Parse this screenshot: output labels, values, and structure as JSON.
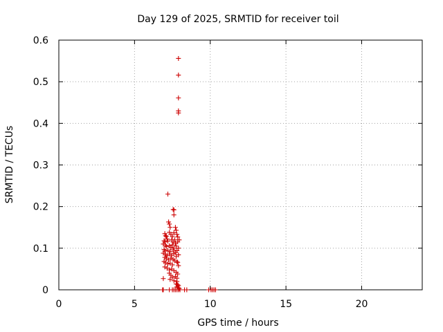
{
  "chart_data": {
    "type": "scatter",
    "title": "Day 129 of 2025, SRMTID for receiver toil",
    "xlabel": "GPS time / hours",
    "ylabel": "SRMTID / TECUs",
    "xlim": [
      0,
      24
    ],
    "ylim": [
      0,
      0.6
    ],
    "xticks": [
      0,
      5,
      10,
      15,
      20
    ],
    "yticks": [
      0,
      0.1,
      0.2,
      0.3,
      0.4,
      0.5,
      0.6
    ],
    "ytick_labels": [
      "0",
      "0.1",
      "0.2",
      "0.3",
      "0.4",
      "0.5",
      "0.6"
    ],
    "grid": true,
    "marker": "+",
    "color": "#cc0000",
    "series": [
      {
        "name": "SRMTID",
        "points": [
          [
            7.9,
            0.556
          ],
          [
            7.9,
            0.516
          ],
          [
            7.9,
            0.461
          ],
          [
            7.9,
            0.43
          ],
          [
            7.9,
            0.425
          ],
          [
            7.2,
            0.23
          ],
          [
            7.55,
            0.193
          ],
          [
            7.6,
            0.192
          ],
          [
            7.6,
            0.18
          ],
          [
            7.25,
            0.163
          ],
          [
            7.3,
            0.158
          ],
          [
            7.35,
            0.15
          ],
          [
            7.7,
            0.15
          ],
          [
            7.75,
            0.143
          ],
          [
            7.0,
            0.135
          ],
          [
            7.05,
            0.13
          ],
          [
            7.1,
            0.128
          ],
          [
            7.3,
            0.138
          ],
          [
            7.4,
            0.133
          ],
          [
            7.5,
            0.128
          ],
          [
            7.6,
            0.137
          ],
          [
            7.8,
            0.133
          ],
          [
            7.85,
            0.127
          ],
          [
            7.95,
            0.12
          ],
          [
            6.95,
            0.118
          ],
          [
            7.0,
            0.115
          ],
          [
            7.15,
            0.122
          ],
          [
            7.2,
            0.117
          ],
          [
            7.45,
            0.12
          ],
          [
            7.55,
            0.115
          ],
          [
            7.65,
            0.12
          ],
          [
            7.7,
            0.112
          ],
          [
            7.85,
            0.115
          ],
          [
            6.9,
            0.11
          ],
          [
            7.05,
            0.107
          ],
          [
            7.1,
            0.104
          ],
          [
            7.3,
            0.106
          ],
          [
            7.4,
            0.102
          ],
          [
            7.5,
            0.108
          ],
          [
            7.6,
            0.1
          ],
          [
            7.75,
            0.105
          ],
          [
            7.9,
            0.1
          ],
          [
            6.95,
            0.097
          ],
          [
            7.0,
            0.093
          ],
          [
            7.2,
            0.095
          ],
          [
            7.35,
            0.092
          ],
          [
            7.55,
            0.096
          ],
          [
            7.7,
            0.09
          ],
          [
            7.8,
            0.094
          ],
          [
            6.9,
            0.088
          ],
          [
            7.05,
            0.085
          ],
          [
            7.15,
            0.082
          ],
          [
            7.3,
            0.086
          ],
          [
            7.45,
            0.083
          ],
          [
            7.6,
            0.087
          ],
          [
            7.75,
            0.08
          ],
          [
            7.9,
            0.084
          ],
          [
            7.0,
            0.078
          ],
          [
            7.1,
            0.075
          ],
          [
            7.25,
            0.072
          ],
          [
            7.4,
            0.076
          ],
          [
            7.55,
            0.073
          ],
          [
            7.65,
            0.07
          ],
          [
            7.8,
            0.067
          ],
          [
            6.95,
            0.068
          ],
          [
            7.05,
            0.065
          ],
          [
            7.2,
            0.062
          ],
          [
            7.35,
            0.064
          ],
          [
            7.5,
            0.06
          ],
          [
            7.85,
            0.066
          ],
          [
            7.9,
            0.058
          ],
          [
            7.0,
            0.055
          ],
          [
            7.15,
            0.052
          ],
          [
            7.3,
            0.048
          ],
          [
            7.45,
            0.05
          ],
          [
            7.6,
            0.046
          ],
          [
            7.75,
            0.042
          ],
          [
            7.85,
            0.038
          ],
          [
            7.3,
            0.04
          ],
          [
            7.4,
            0.035
          ],
          [
            7.5,
            0.03
          ],
          [
            7.7,
            0.032
          ],
          [
            7.8,
            0.028
          ],
          [
            6.9,
            0.027
          ],
          [
            7.35,
            0.025
          ],
          [
            7.6,
            0.022
          ],
          [
            7.8,
            0.02
          ],
          [
            7.75,
            0.014
          ],
          [
            7.85,
            0.012
          ],
          [
            7.9,
            0.01
          ],
          [
            7.8,
            0.007
          ],
          [
            7.9,
            0.005
          ],
          [
            7.95,
            0.003
          ],
          [
            6.85,
            0.0
          ],
          [
            6.9,
            0.0
          ],
          [
            7.3,
            0.0
          ],
          [
            7.5,
            0.0
          ],
          [
            7.6,
            0.0
          ],
          [
            7.7,
            0.0
          ],
          [
            7.8,
            0.0
          ],
          [
            7.9,
            0.0
          ],
          [
            8.0,
            0.0
          ],
          [
            8.3,
            0.0
          ],
          [
            8.45,
            0.0
          ],
          [
            9.9,
            0.0
          ],
          [
            10.05,
            0.0
          ],
          [
            10.15,
            0.0
          ],
          [
            10.25,
            0.0
          ],
          [
            10.35,
            0.0
          ]
        ]
      }
    ]
  }
}
